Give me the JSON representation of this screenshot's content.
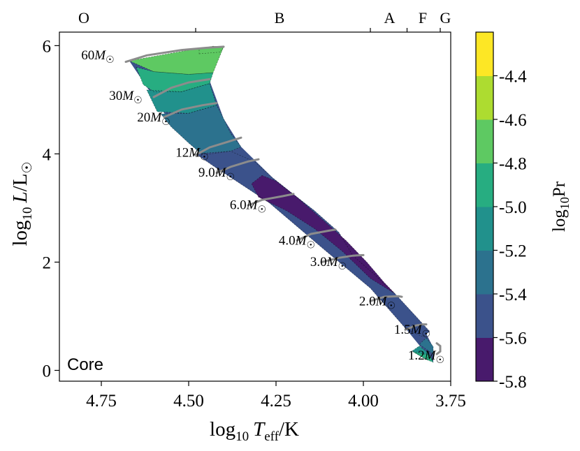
{
  "chart_data": {
    "type": "contour",
    "panel_label": "Core",
    "xlabel": {
      "main": "log",
      "sub": "10",
      "var": "T",
      "varsub": "eff",
      "unit": "/K"
    },
    "ylabel": {
      "main": "log",
      "sub": "10",
      "var": "L",
      "unit": "/L",
      "sun": "☉"
    },
    "xlim": [
      4.87,
      3.75
    ],
    "ylim": [
      -0.2,
      6.25
    ],
    "x_reversed": true,
    "xticks": [
      {
        "v": 4.75,
        "label": "4.75"
      },
      {
        "v": 4.5,
        "label": "4.50"
      },
      {
        "v": 4.25,
        "label": "4.25"
      },
      {
        "v": 4.0,
        "label": "4.00"
      },
      {
        "v": 3.75,
        "label": "3.75"
      }
    ],
    "yticks": [
      {
        "v": 0,
        "label": "0"
      },
      {
        "v": 2,
        "label": "2"
      },
      {
        "v": 4,
        "label": "4"
      },
      {
        "v": 6,
        "label": "6"
      }
    ],
    "spectral_types": [
      {
        "label": "O",
        "x": 4.8
      },
      {
        "label": "B",
        "x": 4.24
      },
      {
        "label": "A",
        "x": 3.925
      },
      {
        "label": "F",
        "x": 3.83
      },
      {
        "label": "G",
        "x": 3.765
      }
    ],
    "spectral_boundaries": [
      4.48,
      3.98,
      3.875,
      3.78
    ],
    "colorbar": {
      "label": {
        "main": "log",
        "sub": "10",
        "var": "Pr"
      },
      "levels": [
        -5.8,
        -5.6,
        -5.4,
        -5.2,
        -5.0,
        -4.8,
        -4.6,
        -4.4
      ],
      "tick_labels": [
        "-5.8",
        "-5.6",
        "-5.4",
        "-5.2",
        "-5.0",
        "-4.8",
        "-4.6",
        "-4.4"
      ],
      "colors": [
        "#481a6c",
        "#3b528b",
        "#2c728e",
        "#21918c",
        "#27ad81",
        "#5ec962",
        "#addc30",
        "#fde725"
      ]
    },
    "region": {
      "left_edge": [
        [
          4.67,
          5.72
        ],
        [
          4.56,
          4.66
        ],
        [
          4.43,
          3.78
        ],
        [
          4.27,
          3.1
        ],
        [
          4.11,
          2.22
        ],
        [
          3.98,
          1.52
        ],
        [
          3.88,
          0.78
        ],
        [
          3.8,
          0.15
        ]
      ],
      "right_edge": [
        [
          4.4,
          5.98
        ],
        [
          4.44,
          5.35
        ],
        [
          4.4,
          4.65
        ],
        [
          4.35,
          4.13
        ],
        [
          4.26,
          3.56
        ],
        [
          4.14,
          2.95
        ],
        [
          4.03,
          2.12
        ],
        [
          3.91,
          1.42
        ],
        [
          3.84,
          0.93
        ],
        [
          3.8,
          0.42
        ]
      ]
    },
    "contour_bands": [
      {
        "value_range": [
          -4.6,
          -4.4
        ],
        "polygon": [
          [
            4.47,
            5.85
          ],
          [
            4.41,
            5.88
          ],
          [
            4.4,
            5.97
          ],
          [
            4.43,
            5.99
          ],
          [
            4.47,
            5.95
          ]
        ]
      },
      {
        "value_range": [
          -4.8,
          -4.6
        ],
        "polygon": [
          [
            4.67,
            5.72
          ],
          [
            4.55,
            5.86
          ],
          [
            4.47,
            5.95
          ],
          [
            4.43,
            5.99
          ],
          [
            4.4,
            5.98
          ],
          [
            4.43,
            5.5
          ],
          [
            4.5,
            5.47
          ],
          [
            4.6,
            5.52
          ]
        ]
      },
      {
        "value_range": [
          -5.0,
          -4.8
        ],
        "polygon": [
          [
            4.65,
            5.6
          ],
          [
            4.6,
            5.52
          ],
          [
            4.5,
            5.47
          ],
          [
            4.43,
            5.5
          ],
          [
            4.44,
            5.3
          ],
          [
            4.52,
            5.15
          ],
          [
            4.6,
            5.15
          ],
          [
            4.63,
            5.28
          ]
        ]
      },
      {
        "value_range": [
          -5.2,
          -5.0
        ],
        "polygon": [
          [
            4.62,
            5.18
          ],
          [
            4.52,
            5.15
          ],
          [
            4.44,
            5.3
          ],
          [
            4.42,
            4.9
          ],
          [
            4.5,
            4.75
          ],
          [
            4.59,
            4.78
          ]
        ]
      },
      {
        "value_range": [
          -5.4,
          -5.2
        ],
        "polygon": [
          [
            4.58,
            4.74
          ],
          [
            4.5,
            4.75
          ],
          [
            4.42,
            4.9
          ],
          [
            4.4,
            4.65
          ],
          [
            4.38,
            4.38
          ],
          [
            4.35,
            4.13
          ],
          [
            4.38,
            4.05
          ],
          [
            4.46,
            3.98
          ],
          [
            4.5,
            4.2
          ],
          [
            4.55,
            4.5
          ]
        ]
      },
      {
        "value_range": [
          -5.6,
          -5.4
        ],
        "polygon": [
          [
            4.48,
            4.0
          ],
          [
            4.38,
            4.05
          ],
          [
            4.31,
            3.85
          ],
          [
            4.26,
            3.56
          ],
          [
            4.2,
            3.25
          ],
          [
            4.14,
            2.95
          ],
          [
            4.07,
            2.55
          ],
          [
            4.03,
            2.12
          ],
          [
            3.97,
            1.78
          ],
          [
            3.91,
            1.42
          ],
          [
            3.84,
            0.93
          ],
          [
            3.81,
            0.72
          ],
          [
            3.83,
            0.62
          ],
          [
            3.88,
            0.78
          ],
          [
            3.98,
            1.52
          ],
          [
            4.11,
            2.22
          ],
          [
            4.27,
            3.1
          ],
          [
            4.43,
            3.78
          ]
        ]
      },
      {
        "value_range": [
          -5.8,
          -5.6
        ],
        "polygon": [
          [
            4.29,
            3.6
          ],
          [
            4.25,
            3.5
          ],
          [
            4.19,
            3.2
          ],
          [
            4.12,
            2.8
          ],
          [
            4.05,
            2.4
          ],
          [
            3.99,
            2.0
          ],
          [
            3.94,
            1.62
          ],
          [
            3.91,
            1.42
          ],
          [
            3.98,
            1.7
          ],
          [
            4.06,
            2.2
          ],
          [
            4.14,
            2.62
          ],
          [
            4.22,
            2.95
          ],
          [
            4.3,
            3.2
          ],
          [
            4.32,
            3.45
          ]
        ]
      },
      {
        "value_range": [
          -5.4,
          -5.2
        ],
        "polygon": [
          [
            3.82,
            0.6
          ],
          [
            3.8,
            0.44
          ],
          [
            3.8,
            0.3
          ],
          [
            3.84,
            0.48
          ]
        ]
      },
      {
        "value_range": [
          -5.2,
          -5.0
        ],
        "polygon": [
          [
            3.84,
            0.45
          ],
          [
            3.81,
            0.3
          ],
          [
            3.82,
            0.2
          ],
          [
            3.86,
            0.36
          ]
        ]
      },
      {
        "value_range": [
          -5.0,
          -4.8
        ],
        "polygon": [
          [
            3.86,
            0.35
          ],
          [
            3.82,
            0.2
          ],
          [
            3.8,
            0.15
          ],
          [
            3.81,
            0.28
          ]
        ]
      }
    ],
    "tracks": [
      {
        "label": "60",
        "points": [
          [
            4.68,
            5.7
          ],
          [
            4.62,
            5.82
          ],
          [
            4.52,
            5.92
          ],
          [
            4.45,
            5.96
          ],
          [
            4.4,
            5.98
          ]
        ],
        "label_pos": [
          4.76,
          5.75
        ]
      },
      {
        "label": "30",
        "points": [
          [
            4.6,
            5.05
          ],
          [
            4.55,
            5.22
          ],
          [
            4.5,
            5.32
          ],
          [
            4.44,
            5.38
          ]
        ],
        "label_pos": [
          4.68,
          5.0
        ]
      },
      {
        "label": "20",
        "points": [
          [
            4.57,
            4.68
          ],
          [
            4.52,
            4.82
          ],
          [
            4.46,
            4.9
          ],
          [
            4.42,
            4.94
          ]
        ],
        "label_pos": [
          4.6,
          4.6
        ]
      },
      {
        "label": "12",
        "points": [
          [
            4.48,
            3.98
          ],
          [
            4.44,
            4.12
          ],
          [
            4.39,
            4.22
          ],
          [
            4.35,
            4.3
          ]
        ],
        "label_pos": [
          4.49,
          3.95
        ]
      },
      {
        "label": "9.0",
        "points": [
          [
            4.42,
            3.65
          ],
          [
            4.38,
            3.76
          ],
          [
            4.33,
            3.86
          ],
          [
            4.3,
            3.9
          ]
        ],
        "label_pos": [
          4.42,
          3.58
        ]
      },
      {
        "label": "6.0",
        "points": [
          [
            4.33,
            3.05
          ],
          [
            4.29,
            3.15
          ],
          [
            4.23,
            3.22
          ],
          [
            4.2,
            3.26
          ]
        ],
        "label_pos": [
          4.33,
          2.98
        ]
      },
      {
        "label": "4.0",
        "points": [
          [
            4.19,
            2.4
          ],
          [
            4.15,
            2.52
          ],
          [
            4.1,
            2.58
          ],
          [
            4.08,
            2.6
          ]
        ],
        "label_pos": [
          4.19,
          2.32
        ]
      },
      {
        "label": "3.0",
        "points": [
          [
            4.12,
            2.0
          ],
          [
            4.07,
            2.08
          ],
          [
            4.03,
            2.12
          ],
          [
            4.0,
            2.13
          ]
        ],
        "label_pos": [
          4.1,
          1.93
        ]
      },
      {
        "label": "2.0",
        "points": [
          [
            3.98,
            1.28
          ],
          [
            3.94,
            1.36
          ],
          [
            3.9,
            1.37
          ],
          [
            3.89,
            1.36
          ]
        ],
        "label_pos": [
          3.96,
          1.2
        ]
      },
      {
        "label": "1.5",
        "points": [
          [
            3.88,
            0.75
          ],
          [
            3.85,
            0.83
          ],
          [
            3.83,
            0.85
          ],
          [
            3.82,
            0.85
          ]
        ],
        "label_pos": [
          3.86,
          0.68
        ]
      },
      {
        "label": "1.2",
        "points": [
          [
            3.79,
            0.5
          ],
          [
            3.78,
            0.45
          ],
          [
            3.78,
            0.35
          ],
          [
            3.79,
            0.3
          ]
        ],
        "label_pos": [
          3.82,
          0.2
        ]
      }
    ],
    "mass_unit": "M",
    "sun_symbol": "☉"
  }
}
